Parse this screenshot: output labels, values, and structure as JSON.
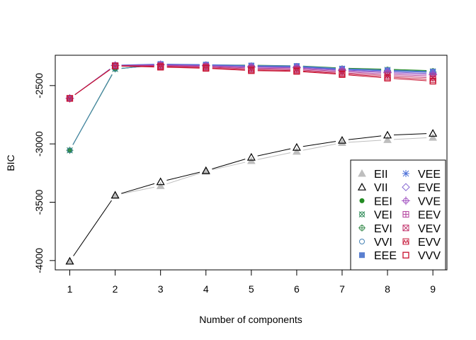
{
  "chart_data": {
    "type": "line",
    "title": "",
    "xlabel": "Number of components",
    "ylabel": "BIC",
    "x": [
      1,
      2,
      3,
      4,
      5,
      6,
      7,
      8,
      9
    ],
    "xticks": [
      "1",
      "2",
      "3",
      "4",
      "5",
      "6",
      "7",
      "8",
      "9"
    ],
    "yticks": [
      "-4000",
      "-3500",
      "-3000",
      "-2500"
    ],
    "ytick_values": [
      -4000,
      -3500,
      -3000,
      -2500
    ],
    "ylim": [
      -4080,
      -2240
    ],
    "xlim": [
      0.68,
      9.31
    ],
    "grid": false,
    "legend_position": "bottom-right",
    "legend_columns": 2,
    "series": [
      {
        "name": "EII",
        "color": "#bebebe",
        "symbol": "filled-triangle",
        "values": [
          -4006,
          -3440,
          -3360,
          -3235,
          -3145,
          -3065,
          -2990,
          -2965,
          -2945
        ]
      },
      {
        "name": "VII",
        "color": "#000000",
        "symbol": "open-triangle",
        "values": [
          -4006,
          -3440,
          -3325,
          -3230,
          -3115,
          -3030,
          -2970,
          -2925,
          -2910
        ]
      },
      {
        "name": "EEI",
        "color": "#228b22",
        "symbol": "filled-circle",
        "values": [
          -3055,
          -2360,
          -2318,
          -2322,
          -2325,
          -2330,
          -2350,
          -2360,
          -2372
        ]
      },
      {
        "name": "VEI",
        "color": "#2e8b57",
        "symbol": "circle-x",
        "values": [
          -3055,
          -2358,
          -2320,
          -2325,
          -2330,
          -2335,
          -2355,
          -2365,
          -2378
        ]
      },
      {
        "name": "EVI",
        "color": "#3c8d50",
        "symbol": "circle-plus",
        "values": [
          -3055,
          -2356,
          -2322,
          -2327,
          -2333,
          -2338,
          -2358,
          -2368,
          -2382
        ]
      },
      {
        "name": "VVI",
        "color": "#4682b4",
        "symbol": "open-circle",
        "values": [
          -3055,
          -2357,
          -2323,
          -2328,
          -2335,
          -2340,
          -2360,
          -2372,
          -2385
        ]
      },
      {
        "name": "EEE",
        "color": "#5a7fd0",
        "symbol": "filled-square",
        "values": [
          -2610,
          -2325,
          -2315,
          -2320,
          -2328,
          -2332,
          -2355,
          -2368,
          -2380
        ]
      },
      {
        "name": "VEE",
        "color": "#4a6fd8",
        "symbol": "asterisk",
        "values": [
          -2610,
          -2326,
          -2317,
          -2323,
          -2332,
          -2337,
          -2360,
          -2374,
          -2388
        ]
      },
      {
        "name": "EVE",
        "color": "#8060d0",
        "symbol": "open-diamond",
        "values": [
          -2610,
          -2327,
          -2320,
          -2327,
          -2338,
          -2343,
          -2366,
          -2382,
          -2398
        ]
      },
      {
        "name": "VVE",
        "color": "#a050c0",
        "symbol": "diamond-plus",
        "values": [
          -2610,
          -2328,
          -2322,
          -2330,
          -2342,
          -2348,
          -2372,
          -2390,
          -2408
        ]
      },
      {
        "name": "EEV",
        "color": "#b03a9a",
        "symbol": "square-plus",
        "values": [
          -2610,
          -2329,
          -2328,
          -2336,
          -2350,
          -2356,
          -2380,
          -2402,
          -2420
        ]
      },
      {
        "name": "VEV",
        "color": "#c0306a",
        "symbol": "square-x",
        "values": [
          -2610,
          -2330,
          -2332,
          -2341,
          -2358,
          -2364,
          -2390,
          -2414,
          -2435
        ]
      },
      {
        "name": "EVV",
        "color": "#c82040",
        "symbol": "square-triangle",
        "values": [
          -2610,
          -2331,
          -2338,
          -2348,
          -2366,
          -2372,
          -2398,
          -2426,
          -2450
        ]
      },
      {
        "name": "VVV",
        "color": "#c8102e",
        "symbol": "open-square",
        "values": [
          -2610,
          -2332,
          -2342,
          -2352,
          -2372,
          -2378,
          -2405,
          -2436,
          -2462
        ]
      }
    ]
  }
}
